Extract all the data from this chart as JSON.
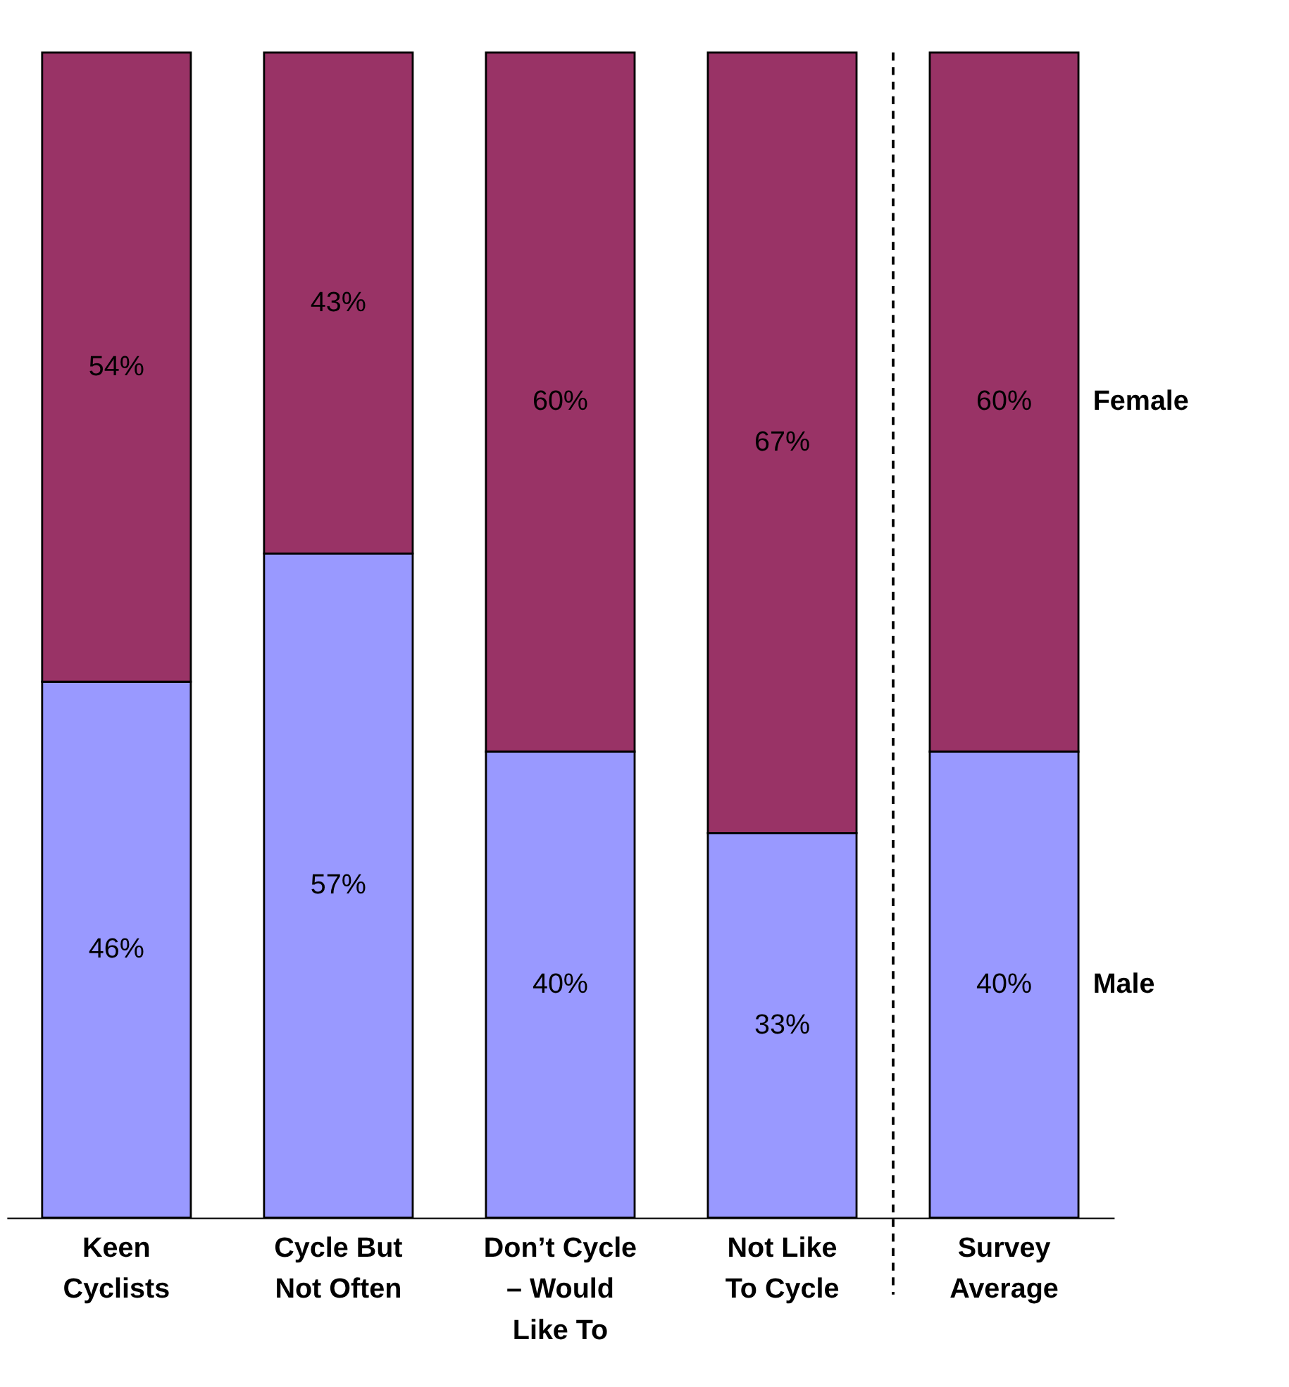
{
  "chart_data": {
    "type": "bar",
    "stacked": true,
    "legend": "right",
    "tick_labels": "x",
    "categories": [
      "Keen\nCyclists",
      "Cycle But\nNot Often",
      "Don’t Cycle\n– Would\nLike To",
      "Not Like\nTo Cycle",
      "Survey\nAverage"
    ],
    "series": [
      {
        "name": "Male",
        "color": "#9999ff",
        "values": [
          46,
          57,
          40,
          33,
          40
        ],
        "value_labels": [
          "46%",
          "57%",
          "40%",
          "33%",
          "40%"
        ]
      },
      {
        "name": "Female",
        "color": "#993366",
        "values": [
          54,
          43,
          60,
          67,
          60
        ],
        "value_labels": [
          "54%",
          "43%",
          "60%",
          "67%",
          "60%"
        ]
      }
    ]
  }
}
